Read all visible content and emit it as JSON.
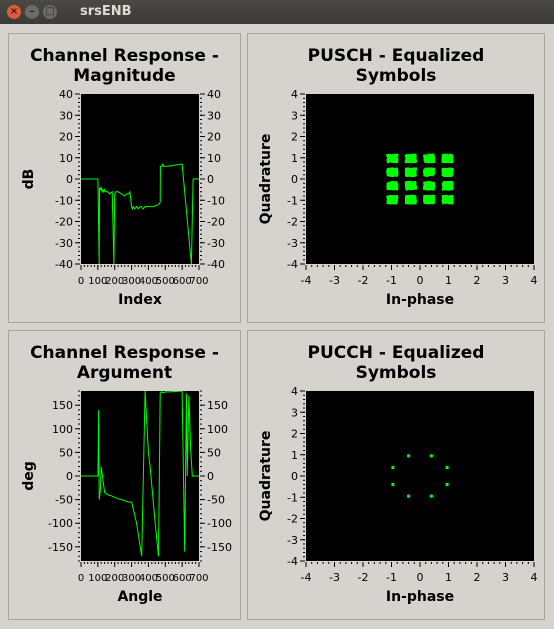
{
  "window": {
    "title": "srsENB",
    "close_glyph": "×",
    "min_glyph": "–",
    "max_glyph": "□"
  },
  "panels": [
    {
      "title_line1": "Channel Response -",
      "title_line2": "Magnitude",
      "xlabel": "Index",
      "ylabel": "dB"
    },
    {
      "title_line1": "PUSCH - Equalized",
      "title_line2": "Symbols",
      "xlabel": "In-phase",
      "ylabel": "Quadrature"
    },
    {
      "title_line1": "Channel Response -",
      "title_line2": "Argument",
      "xlabel": "Angle",
      "ylabel": "deg"
    },
    {
      "title_line1": "PUCCH - Equalized",
      "title_line2": "Symbols",
      "xlabel": "In-phase",
      "ylabel": "Quadrature"
    }
  ],
  "chart_data": [
    {
      "type": "line",
      "title": "Channel Response - Magnitude",
      "xlabel": "Index",
      "ylabel": "dB",
      "xlim": [
        0,
        700
      ],
      "ylim": [
        -40,
        40
      ],
      "xticks": [
        0,
        100,
        200,
        300,
        400,
        500,
        600,
        700
      ],
      "yticks": [
        -40,
        -30,
        -20,
        -10,
        0,
        10,
        20,
        30,
        40
      ],
      "grid": false,
      "series": [
        {
          "color": "#00ff00",
          "x": [
            0,
            100,
            108,
            110,
            115,
            120,
            125,
            130,
            135,
            140,
            145,
            150,
            160,
            170,
            185,
            195,
            200,
            205,
            210,
            220,
            240,
            260,
            270,
            282,
            290,
            300,
            305,
            310,
            320,
            330,
            340,
            350,
            360,
            365,
            370,
            380,
            430,
            460,
            470,
            471,
            480,
            485,
            490,
            500,
            515,
            600,
            655,
            665,
            680,
            700
          ],
          "y": [
            0,
            0,
            -40,
            -4,
            -5,
            -4,
            -6,
            -5,
            -6,
            -5,
            -6,
            -6,
            -6,
            -7,
            -6,
            -40,
            -7,
            -6,
            -6,
            -6,
            -7,
            -8,
            -7,
            -7,
            -6,
            -13,
            -14,
            -13,
            -14,
            -13,
            -14,
            -13,
            -13,
            -14,
            -14,
            -13,
            -13,
            -12,
            -11,
            6,
            6,
            7,
            6,
            6,
            6,
            7,
            -40,
            0,
            0,
            0
          ]
        }
      ]
    },
    {
      "type": "scatter",
      "title": "PUSCH - Equalized Symbols",
      "xlabel": "In-phase",
      "ylabel": "Quadrature",
      "xlim": [
        -4,
        4
      ],
      "ylim": [
        -4,
        4
      ],
      "xticks": [
        -4,
        -3,
        -2,
        -1,
        0,
        1,
        2,
        3,
        4
      ],
      "yticks": [
        -4,
        -3,
        -2,
        -1,
        0,
        1,
        2,
        3,
        4
      ],
      "grid": false,
      "series": [
        {
          "color": "#00ff00",
          "cluster_centers": [
            [
              -0.97,
              0.97
            ],
            [
              -0.32,
              0.97
            ],
            [
              0.32,
              0.97
            ],
            [
              0.97,
              0.97
            ],
            [
              -0.97,
              0.32
            ],
            [
              -0.32,
              0.32
            ],
            [
              0.32,
              0.32
            ],
            [
              0.97,
              0.32
            ],
            [
              -0.97,
              -0.32
            ],
            [
              -0.32,
              -0.32
            ],
            [
              0.32,
              -0.32
            ],
            [
              0.97,
              -0.32
            ],
            [
              -0.97,
              -0.97
            ],
            [
              -0.32,
              -0.97
            ],
            [
              0.32,
              -0.97
            ],
            [
              0.97,
              -0.97
            ]
          ],
          "cluster_spread": 0.17,
          "points_per_cluster": 120
        }
      ]
    },
    {
      "type": "line",
      "title": "Channel Response - Argument",
      "xlabel": "Angle",
      "ylabel": "deg",
      "xlim": [
        0,
        700
      ],
      "ylim": [
        -180,
        180
      ],
      "xticks": [
        0,
        100,
        200,
        300,
        400,
        500,
        600,
        700
      ],
      "yticks": [
        -150,
        -100,
        -50,
        0,
        50,
        100,
        150
      ],
      "grid": false,
      "series": [
        {
          "color": "#00ff00",
          "x": [
            0,
            100,
            105,
            108,
            115,
            120,
            140,
            160,
            180,
            200,
            220,
            240,
            260,
            280,
            300,
            330,
            360,
            380,
            400,
            410,
            420,
            440,
            460,
            470,
            475,
            480,
            490,
            500,
            520,
            560,
            600,
            615,
            625,
            630,
            640,
            650,
            660,
            670,
            680,
            690,
            700
          ],
          "y": [
            0,
            0,
            140,
            -50,
            -30,
            20,
            -35,
            -40,
            -42,
            -45,
            -48,
            -50,
            -52,
            -55,
            -55,
            -100,
            -170,
            180,
            50,
            20,
            -20,
            -100,
            -170,
            175,
            178,
            178,
            176,
            178,
            178,
            179,
            180,
            -160,
            175,
            0,
            170,
            60,
            0,
            0,
            0,
            0,
            0
          ]
        }
      ]
    },
    {
      "type": "scatter",
      "title": "PUCCH - Equalized Symbols",
      "xlabel": "In-phase",
      "ylabel": "Quadrature",
      "xlim": [
        -4,
        4
      ],
      "ylim": [
        -4,
        4
      ],
      "xticks": [
        -4,
        -3,
        -2,
        -1,
        0,
        1,
        2,
        3,
        4
      ],
      "yticks": [
        -4,
        -3,
        -2,
        -1,
        0,
        1,
        2,
        3,
        4
      ],
      "grid": false,
      "series": [
        {
          "color": "#00ff00",
          "points": [
            [
              -0.4,
              0.95
            ],
            [
              0.4,
              0.95
            ],
            [
              -0.95,
              0.4
            ],
            [
              0.95,
              0.4
            ],
            [
              -0.95,
              -0.4
            ],
            [
              0.95,
              -0.4
            ],
            [
              -0.4,
              -0.95
            ],
            [
              0.4,
              -0.95
            ]
          ]
        }
      ]
    }
  ]
}
